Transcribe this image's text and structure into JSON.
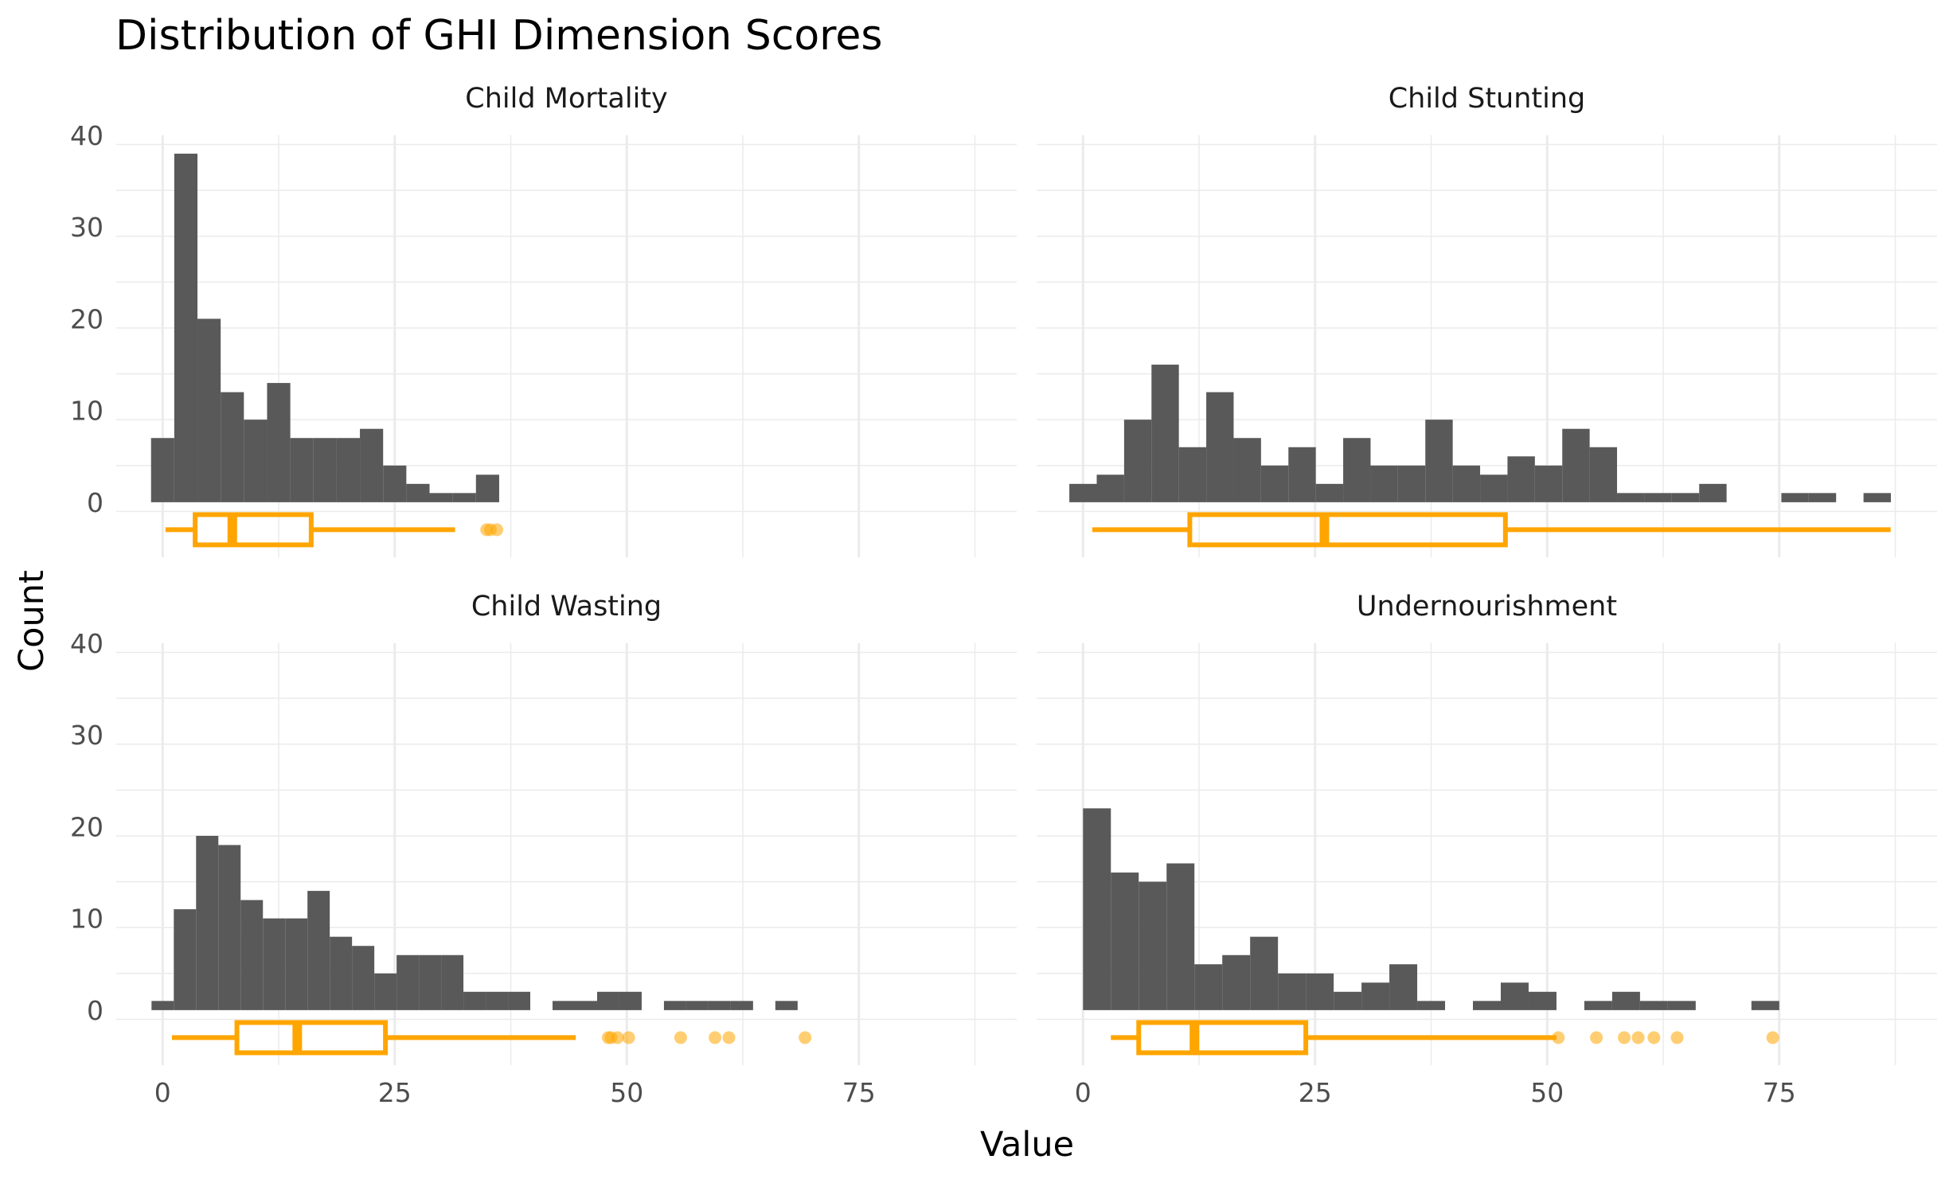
{
  "chart_data": {
    "type": "bar",
    "title": "Distribution of GHI Dimension Scores",
    "xlabel": "Value",
    "ylabel": "Count",
    "x_ticks": [
      0,
      25,
      50,
      75
    ],
    "y_ticks": [
      0,
      10,
      20,
      30,
      40
    ],
    "xlim": [
      -5,
      92
    ],
    "ylim": [
      -6,
      40
    ],
    "grid": true,
    "bar_color": "#595959",
    "box_color": "#FFA500",
    "panels": [
      {
        "name": "Child Mortality",
        "bin_width": 2.5,
        "bins": [
          {
            "x": 0.0,
            "count": 7
          },
          {
            "x": 2.5,
            "count": 38
          },
          {
            "x": 5.0,
            "count": 20
          },
          {
            "x": 7.5,
            "count": 12
          },
          {
            "x": 10.0,
            "count": 9
          },
          {
            "x": 12.5,
            "count": 13
          },
          {
            "x": 15.0,
            "count": 7
          },
          {
            "x": 17.5,
            "count": 7
          },
          {
            "x": 20.0,
            "count": 7
          },
          {
            "x": 22.5,
            "count": 8
          },
          {
            "x": 25.0,
            "count": 4
          },
          {
            "x": 27.5,
            "count": 2
          },
          {
            "x": 30.0,
            "count": 1
          },
          {
            "x": 32.5,
            "count": 1
          },
          {
            "x": 35.0,
            "count": 3
          }
        ],
        "boxplot": {
          "whisker_low": 0.3,
          "q1": 3.5,
          "median": 7.5,
          "q3": 16.0,
          "whisker_high": 31.5
        },
        "outliers": [
          34.9,
          35.3,
          36.0
        ]
      },
      {
        "name": "Child Stunting",
        "bin_width": 2.95,
        "bins": [
          {
            "x": 0.0,
            "count": 2
          },
          {
            "x": 2.95,
            "count": 3
          },
          {
            "x": 5.9,
            "count": 9
          },
          {
            "x": 8.85,
            "count": 15
          },
          {
            "x": 11.8,
            "count": 6
          },
          {
            "x": 14.75,
            "count": 12
          },
          {
            "x": 17.7,
            "count": 7
          },
          {
            "x": 20.65,
            "count": 4
          },
          {
            "x": 23.6,
            "count": 6
          },
          {
            "x": 26.55,
            "count": 2
          },
          {
            "x": 29.5,
            "count": 7
          },
          {
            "x": 32.45,
            "count": 4
          },
          {
            "x": 35.4,
            "count": 4
          },
          {
            "x": 38.35,
            "count": 9
          },
          {
            "x": 41.3,
            "count": 4
          },
          {
            "x": 44.25,
            "count": 3
          },
          {
            "x": 47.2,
            "count": 5
          },
          {
            "x": 50.15,
            "count": 4
          },
          {
            "x": 53.1,
            "count": 8
          },
          {
            "x": 56.05,
            "count": 6
          },
          {
            "x": 59.0,
            "count": 1
          },
          {
            "x": 61.95,
            "count": 1
          },
          {
            "x": 64.9,
            "count": 1
          },
          {
            "x": 67.85,
            "count": 2
          },
          {
            "x": 70.8,
            "count": 0
          },
          {
            "x": 73.75,
            "count": 0
          },
          {
            "x": 76.7,
            "count": 1
          },
          {
            "x": 79.65,
            "count": 1
          },
          {
            "x": 82.6,
            "count": 0
          },
          {
            "x": 85.55,
            "count": 1
          }
        ],
        "boxplot": {
          "whisker_low": 1.0,
          "q1": 11.5,
          "median": 26.0,
          "q3": 45.5,
          "whisker_high": 87.0
        },
        "outliers": []
      },
      {
        "name": "Child Wasting",
        "bin_width": 2.4,
        "bins": [
          {
            "x": 0.0,
            "count": 1
          },
          {
            "x": 2.4,
            "count": 11
          },
          {
            "x": 4.8,
            "count": 19
          },
          {
            "x": 7.2,
            "count": 18
          },
          {
            "x": 9.6,
            "count": 12
          },
          {
            "x": 12.0,
            "count": 10
          },
          {
            "x": 14.4,
            "count": 10
          },
          {
            "x": 16.8,
            "count": 13
          },
          {
            "x": 19.2,
            "count": 8
          },
          {
            "x": 21.6,
            "count": 7
          },
          {
            "x": 24.0,
            "count": 4
          },
          {
            "x": 26.4,
            "count": 6
          },
          {
            "x": 28.8,
            "count": 6
          },
          {
            "x": 31.2,
            "count": 6
          },
          {
            "x": 33.6,
            "count": 2
          },
          {
            "x": 36.0,
            "count": 2
          },
          {
            "x": 38.4,
            "count": 2
          },
          {
            "x": 40.8,
            "count": 0
          },
          {
            "x": 43.2,
            "count": 1
          },
          {
            "x": 45.6,
            "count": 1
          },
          {
            "x": 48.0,
            "count": 2
          },
          {
            "x": 50.4,
            "count": 2
          },
          {
            "x": 52.8,
            "count": 0
          },
          {
            "x": 55.2,
            "count": 1
          },
          {
            "x": 57.6,
            "count": 1
          },
          {
            "x": 60.0,
            "count": 1
          },
          {
            "x": 62.4,
            "count": 1
          },
          {
            "x": 64.8,
            "count": 0
          },
          {
            "x": 67.2,
            "count": 1
          }
        ],
        "boxplot": {
          "whisker_low": 1.0,
          "q1": 8.0,
          "median": 14.5,
          "q3": 24.0,
          "whisker_high": 44.5
        },
        "outliers": [
          48.0,
          48.3,
          49.0,
          50.2,
          55.8,
          59.5,
          61.0,
          69.2
        ]
      },
      {
        "name": "Undernourishment",
        "bin_width": 3.0,
        "bins": [
          {
            "x": 1.5,
            "count": 22
          },
          {
            "x": 4.5,
            "count": 15
          },
          {
            "x": 7.5,
            "count": 14
          },
          {
            "x": 10.5,
            "count": 16
          },
          {
            "x": 13.5,
            "count": 5
          },
          {
            "x": 16.5,
            "count": 6
          },
          {
            "x": 19.5,
            "count": 8
          },
          {
            "x": 22.5,
            "count": 4
          },
          {
            "x": 25.5,
            "count": 4
          },
          {
            "x": 28.5,
            "count": 2
          },
          {
            "x": 31.5,
            "count": 3
          },
          {
            "x": 34.5,
            "count": 5
          },
          {
            "x": 37.5,
            "count": 1
          },
          {
            "x": 40.5,
            "count": 0
          },
          {
            "x": 43.5,
            "count": 1
          },
          {
            "x": 46.5,
            "count": 3
          },
          {
            "x": 49.5,
            "count": 2
          },
          {
            "x": 52.5,
            "count": 0
          },
          {
            "x": 55.5,
            "count": 1
          },
          {
            "x": 58.5,
            "count": 2
          },
          {
            "x": 61.5,
            "count": 1
          },
          {
            "x": 64.5,
            "count": 1
          },
          {
            "x": 67.5,
            "count": 0
          },
          {
            "x": 70.5,
            "count": 0
          },
          {
            "x": 73.5,
            "count": 1
          }
        ],
        "boxplot": {
          "whisker_low": 3.0,
          "q1": 6.0,
          "median": 12.0,
          "q3": 24.0,
          "whisker_high": 51.0
        },
        "outliers": [
          51.2,
          55.3,
          58.3,
          59.8,
          61.5,
          64.0,
          74.3
        ]
      }
    ]
  }
}
